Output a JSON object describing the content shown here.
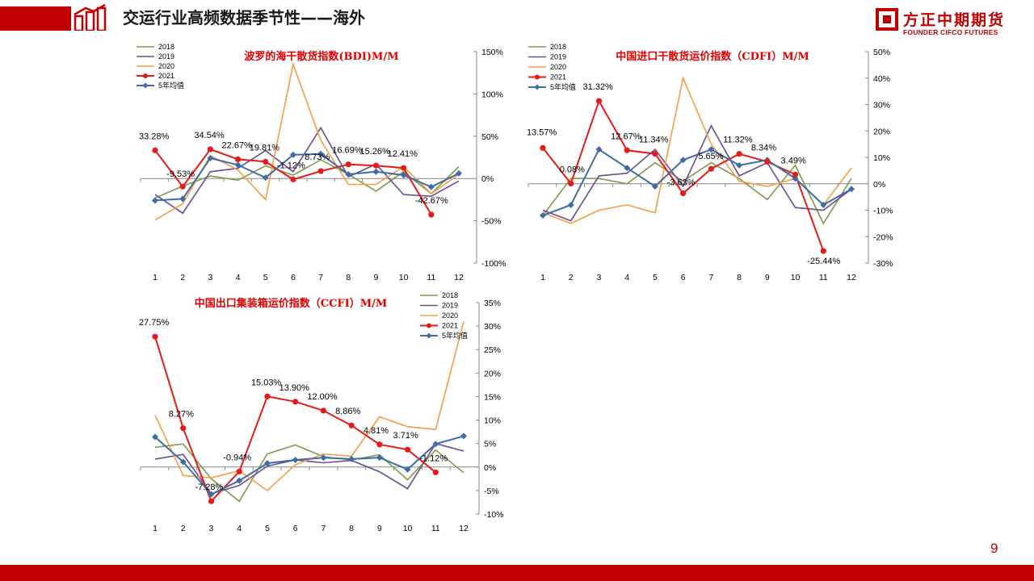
{
  "header": {
    "title": "交运行业高频数据季节性——海外"
  },
  "brand": {
    "name_cn": "方正中期期货",
    "name_en": "FOUNDER CIFCO FUTURES"
  },
  "page": {
    "number": "9"
  },
  "colors": {
    "brand_red": "#c00000",
    "s2018": "#7f9a48",
    "s2019": "#6a4c93",
    "s2020": "#f59d43",
    "s2021": "#e51b1b",
    "avg": "#3e6ca6"
  },
  "chart_data": [
    {
      "type": "line",
      "title": "波罗的海干散货指数(BDI)M/M",
      "categories": [
        "1",
        "2",
        "3",
        "4",
        "5",
        "6",
        "7",
        "8",
        "9",
        "10",
        "11",
        "12"
      ],
      "y_ticks": [
        "150%",
        "100%",
        "50%",
        "0%",
        "-50%",
        "-100%"
      ],
      "ylim": [
        -100,
        150
      ],
      "legend_position": "top-left",
      "series": [
        {
          "name": "2018",
          "values": [
            -23,
            -9,
            3,
            -2,
            15,
            4,
            22,
            5,
            -15,
            8,
            -18,
            14
          ]
        },
        {
          "name": "2019",
          "values": [
            -19,
            -41,
            8,
            12,
            33,
            8,
            60,
            2,
            17,
            -19,
            -21,
            -3
          ]
        },
        {
          "name": "2020",
          "values": [
            -49,
            -30,
            27,
            10,
            -25,
            135,
            45,
            -7,
            -7,
            14,
            -18,
            5
          ]
        },
        {
          "name": "2021",
          "values": [
            33.28,
            -9.53,
            34.54,
            22.67,
            19.81,
            -1.12,
            8.73,
            16.69,
            15.26,
            12.41,
            -42.67,
            null
          ]
        },
        {
          "name": "5年均值",
          "values": [
            -26,
            -24,
            24,
            16,
            1,
            28,
            29,
            5,
            8,
            4,
            -10,
            6
          ]
        }
      ],
      "data_labels": [
        "33.28%",
        "-9.53%",
        "34.54%",
        "22.67%",
        "19.81%",
        "-1.12%",
        "8.73%",
        "16.69%",
        "15.26%",
        "12.41%",
        "-42.67%"
      ]
    },
    {
      "type": "line",
      "title": "中国进口干散货运价指数（CDFI）M/M",
      "categories": [
        "1",
        "2",
        "3",
        "4",
        "5",
        "6",
        "7",
        "8",
        "9",
        "10",
        "11",
        "12"
      ],
      "y_ticks": [
        "50%",
        "40%",
        "30%",
        "20%",
        "10%",
        "0%",
        "-10%",
        "-20%",
        "-30%"
      ],
      "ylim": [
        -30,
        50
      ],
      "legend_position": "top-left",
      "series": [
        {
          "name": "2018",
          "values": [
            -12,
            2,
            2,
            0,
            8,
            1,
            8,
            2,
            -6,
            7,
            -15,
            2
          ]
        },
        {
          "name": "2019",
          "values": [
            -10,
            -14,
            3,
            4,
            13,
            -1,
            22,
            3,
            8,
            -9,
            -10,
            -2
          ]
        },
        {
          "name": "2020",
          "values": [
            -11,
            -15,
            -10,
            -8,
            -11,
            40,
            15,
            1,
            -1,
            2,
            -8,
            6
          ]
        },
        {
          "name": "2021",
          "values": [
            13.57,
            0.08,
            31.32,
            12.67,
            11.34,
            -3.63,
            5.65,
            11.32,
            8.34,
            3.49,
            -25.44,
            null
          ]
        },
        {
          "name": "5年均值",
          "values": [
            -12,
            -8,
            13,
            6,
            -1,
            9,
            13,
            7,
            9,
            2,
            -8,
            -2
          ]
        }
      ],
      "data_labels": [
        "13.57%",
        "0.08%",
        "31.32%",
        "12.67%",
        "11.34%",
        "-3.63%",
        "5.65%",
        "11.32%",
        "8.34%",
        "3.49%",
        "-25.44%"
      ]
    },
    {
      "type": "line",
      "title": "中国出口集装箱运价指数（CCFI）M/M",
      "categories": [
        "1",
        "2",
        "3",
        "4",
        "5",
        "6",
        "7",
        "8",
        "9",
        "10",
        "11",
        "12"
      ],
      "y_ticks": [
        "35%",
        "30%",
        "25%",
        "20%",
        "15%",
        "10%",
        "5%",
        "0%",
        "-5%",
        "-10%"
      ],
      "ylim": [
        -10,
        35
      ],
      "legend_position": "top-right",
      "series": [
        {
          "name": "2018",
          "values": [
            4.2,
            4.9,
            -2.5,
            -7.3,
            2.8,
            4.7,
            2.2,
            1.5,
            2.6,
            -2.7,
            3.6,
            -1.2
          ]
        },
        {
          "name": "2019",
          "values": [
            1.7,
            2.7,
            -5.7,
            -3.9,
            0.2,
            1.5,
            0.9,
            1.4,
            -1.0,
            -4.6,
            5.0,
            3.4
          ]
        },
        {
          "name": "2020",
          "values": [
            11.0,
            -1.8,
            -2.3,
            -0.8,
            -5.0,
            0.5,
            2.8,
            2.3,
            10.7,
            8.6,
            8.0,
            31.0
          ]
        },
        {
          "name": "2021",
          "values": [
            27.75,
            8.27,
            -7.28,
            -0.94,
            15.03,
            13.9,
            12.0,
            8.86,
            4.81,
            3.71,
            -1.12,
            null
          ]
        },
        {
          "name": "5年均值",
          "values": [
            6.4,
            1.1,
            -5.8,
            -2.9,
            0.8,
            1.5,
            2.0,
            1.7,
            2.0,
            -0.5,
            4.9,
            6.6
          ]
        }
      ],
      "data_labels": [
        "27.75%",
        "8.27%",
        "-7.28%",
        "-0.94%",
        "15.03%",
        "13.90%",
        "12.00%",
        "8.86%",
        "4.81%",
        "3.71%",
        "-1.12%"
      ]
    }
  ]
}
